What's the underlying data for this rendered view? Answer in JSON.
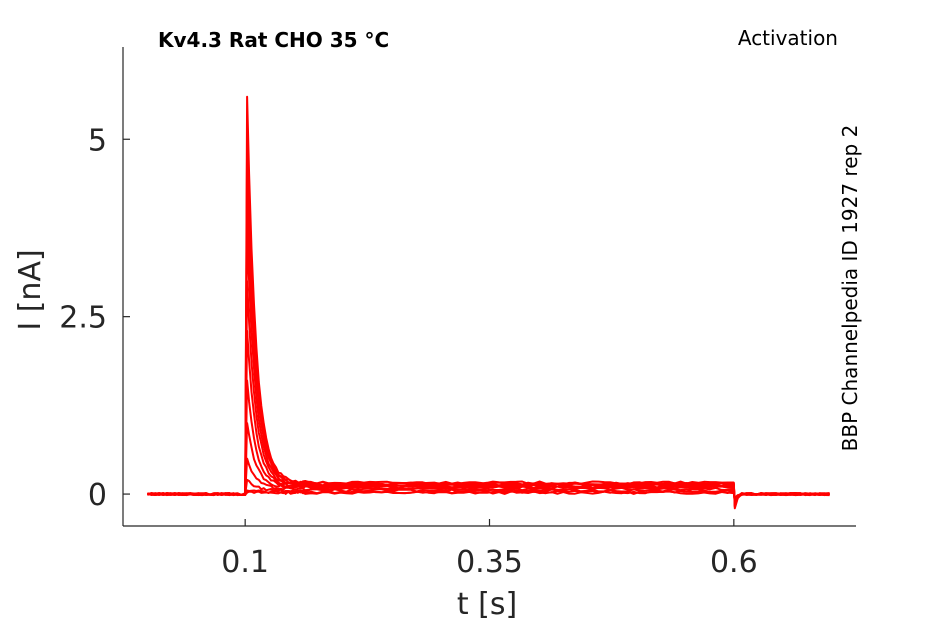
{
  "chart_data": {
    "type": "line",
    "title": "Kv4.3  Rat  CHO  35 °C",
    "protocol": "Activation",
    "source_label": "BBP Channelpedia ID 1927 rep 2",
    "xlabel": "t [s]",
    "ylabel": "I [nA]",
    "xlim": [
      -0.025,
      0.725
    ],
    "ylim": [
      -0.45,
      6.3
    ],
    "xticks": [
      0.1,
      0.35,
      0.6
    ],
    "xtick_labels": [
      "0.1",
      "0.35",
      "0.6"
    ],
    "yticks": [
      0,
      2.5,
      5
    ],
    "ytick_labels": [
      "0",
      "2.5",
      "5"
    ],
    "grid": false,
    "line_color": "#ff0000",
    "stimulus": {
      "t_on": 0.1,
      "t_off": 0.6,
      "t_start": 0.0,
      "t_end": 0.7
    },
    "series": [
      {
        "peak": 0.02,
        "steady": 0.02,
        "tail": -0.05
      },
      {
        "peak": 0.05,
        "steady": 0.03,
        "tail": -0.07
      },
      {
        "peak": 0.2,
        "steady": 0.05,
        "tail": -0.09
      },
      {
        "peak": 0.5,
        "steady": 0.07,
        "tail": -0.1
      },
      {
        "peak": 1.0,
        "steady": 0.09,
        "tail": -0.12
      },
      {
        "peak": 1.6,
        "steady": 0.1,
        "tail": -0.13
      },
      {
        "peak": 2.3,
        "steady": 0.11,
        "tail": -0.14
      },
      {
        "peak": 3.0,
        "steady": 0.12,
        "tail": -0.15
      },
      {
        "peak": 3.7,
        "steady": 0.13,
        "tail": -0.16
      },
      {
        "peak": 4.4,
        "steady": 0.14,
        "tail": -0.17
      },
      {
        "peak": 5.0,
        "steady": 0.15,
        "tail": -0.18
      },
      {
        "peak": 5.6,
        "steady": 0.16,
        "tail": -0.2
      }
    ]
  }
}
